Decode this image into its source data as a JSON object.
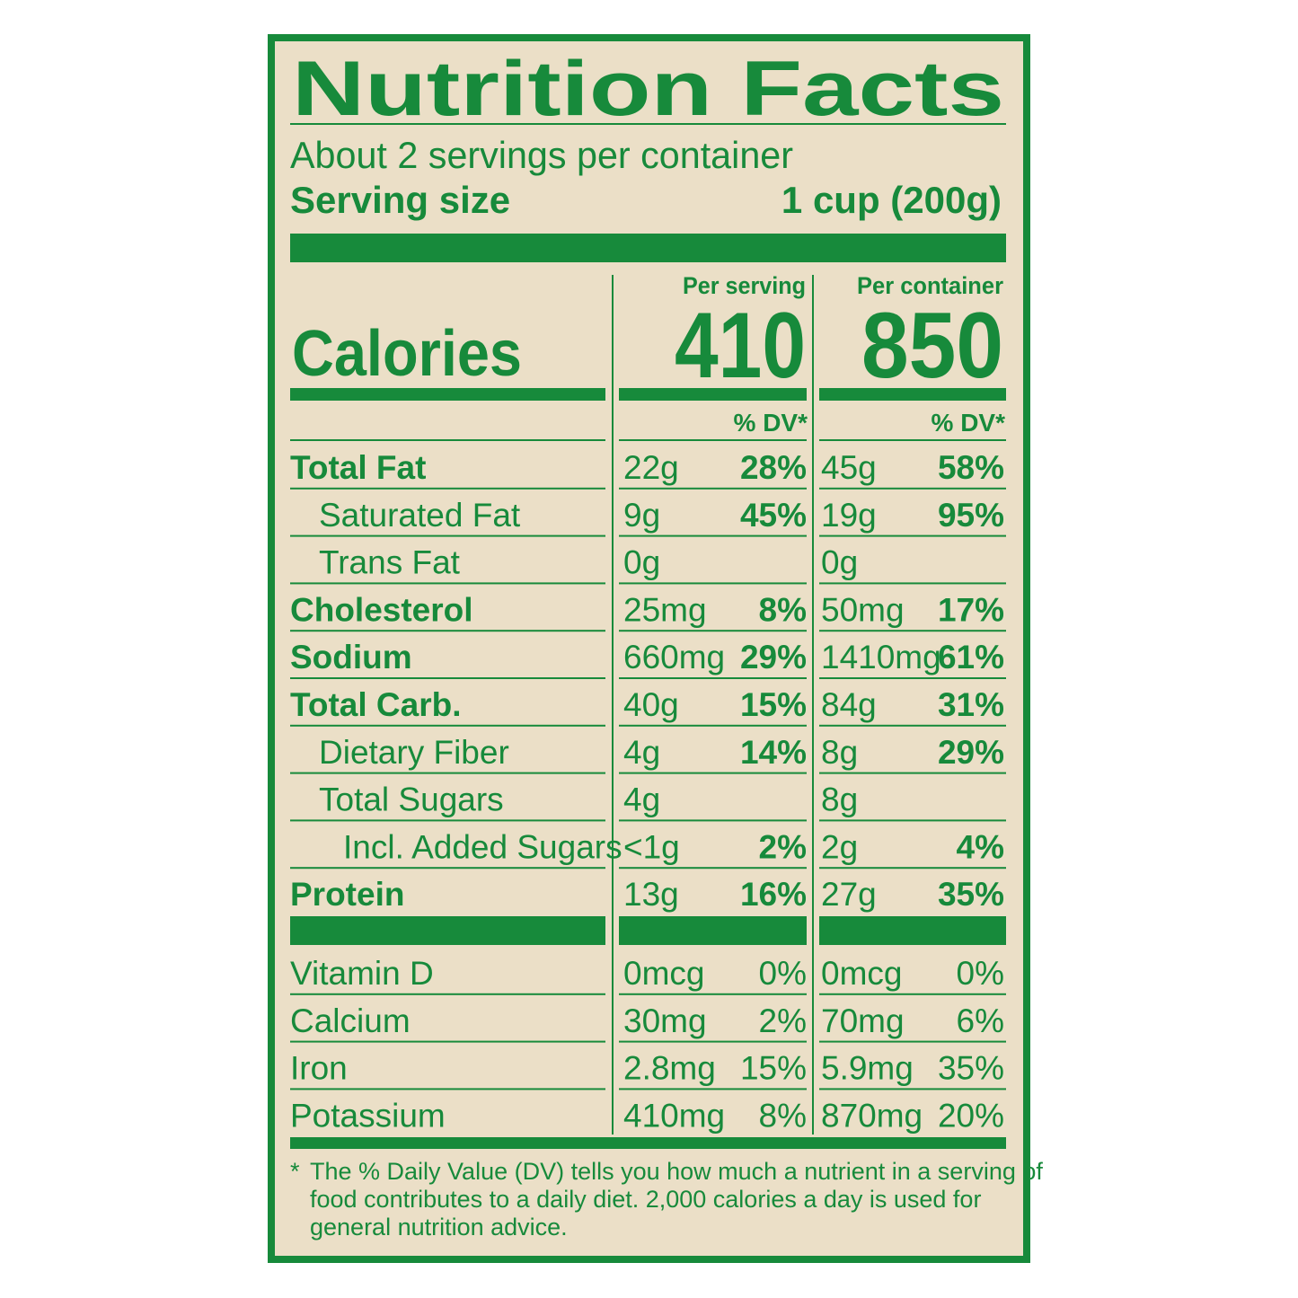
{
  "title": "Nutrition Facts",
  "servings": "About 2 servings per container",
  "serving_size": {
    "label": "Serving size",
    "value": "1 cup (200g)"
  },
  "calories_label": "Calories",
  "columns": [
    {
      "header": "Per serving",
      "calories": 410,
      "dv_header": "% DV*"
    },
    {
      "header": "Per container",
      "calories": 850,
      "dv_header": "% DV*"
    }
  ],
  "nutrients": [
    {
      "name": "Total Fat",
      "bold": true,
      "indent": 0,
      "values": [
        {
          "amount": "22g",
          "dv": "28%"
        },
        {
          "amount": "45g",
          "dv": "58%"
        }
      ]
    },
    {
      "name": "Saturated Fat",
      "bold": false,
      "indent": 1,
      "values": [
        {
          "amount": "9g",
          "dv": "45%"
        },
        {
          "amount": "19g",
          "dv": "95%"
        }
      ]
    },
    {
      "name": "Trans Fat",
      "bold": false,
      "indent": 1,
      "values": [
        {
          "amount": "0g"
        },
        {
          "amount": "0g"
        }
      ]
    },
    {
      "name": "Cholesterol",
      "bold": true,
      "indent": 0,
      "values": [
        {
          "amount": "25mg",
          "dv": "8%"
        },
        {
          "amount": "50mg",
          "dv": "17%"
        }
      ]
    },
    {
      "name": "Sodium",
      "bold": true,
      "indent": 0,
      "values": [
        {
          "amount": "660mg",
          "dv": "29%"
        },
        {
          "amount": "1410mg",
          "dv": "61%"
        }
      ]
    },
    {
      "name": "Total Carb.",
      "bold": true,
      "indent": 0,
      "values": [
        {
          "amount": "40g",
          "dv": "15%"
        },
        {
          "amount": "84g",
          "dv": "31%"
        }
      ]
    },
    {
      "name": "Dietary Fiber",
      "bold": false,
      "indent": 1,
      "values": [
        {
          "amount": "4g",
          "dv": "14%"
        },
        {
          "amount": "8g",
          "dv": "29%"
        }
      ]
    },
    {
      "name": "Total Sugars",
      "bold": false,
      "indent": 1,
      "values": [
        {
          "amount": "4g"
        },
        {
          "amount": "8g"
        }
      ]
    },
    {
      "name": "Incl. Added Sugars",
      "bold": false,
      "indent": 2,
      "values": [
        {
          "amount": "<1g",
          "dv": "2%"
        },
        {
          "amount": "2g",
          "dv": "4%"
        }
      ]
    },
    {
      "name": "Protein",
      "bold": true,
      "indent": 0,
      "values": [
        {
          "amount": "13g",
          "dv": "16%"
        },
        {
          "amount": "27g",
          "dv": "35%"
        }
      ]
    }
  ],
  "vitamins": [
    {
      "name": "Vitamin D",
      "values": [
        {
          "amount": "0mcg",
          "dv": "0%"
        },
        {
          "amount": "0mcg",
          "dv": "0%"
        }
      ]
    },
    {
      "name": "Calcium",
      "values": [
        {
          "amount": "30mg",
          "dv": "2%"
        },
        {
          "amount": "70mg",
          "dv": "6%"
        }
      ]
    },
    {
      "name": "Iron",
      "values": [
        {
          "amount": "2.8mg",
          "dv": "15%"
        },
        {
          "amount": "5.9mg",
          "dv": "35%"
        }
      ]
    },
    {
      "name": "Potassium",
      "values": [
        {
          "amount": "410mg",
          "dv": "8%"
        },
        {
          "amount": "870mg",
          "dv": "20%"
        }
      ]
    }
  ],
  "footnote": {
    "mark": "*",
    "lines": [
      "The % Daily Value (DV) tells you how much a nutrient in a serving of",
      "food contributes to a daily diet. 2,000 calories a day is used for",
      "general nutrition advice."
    ]
  }
}
